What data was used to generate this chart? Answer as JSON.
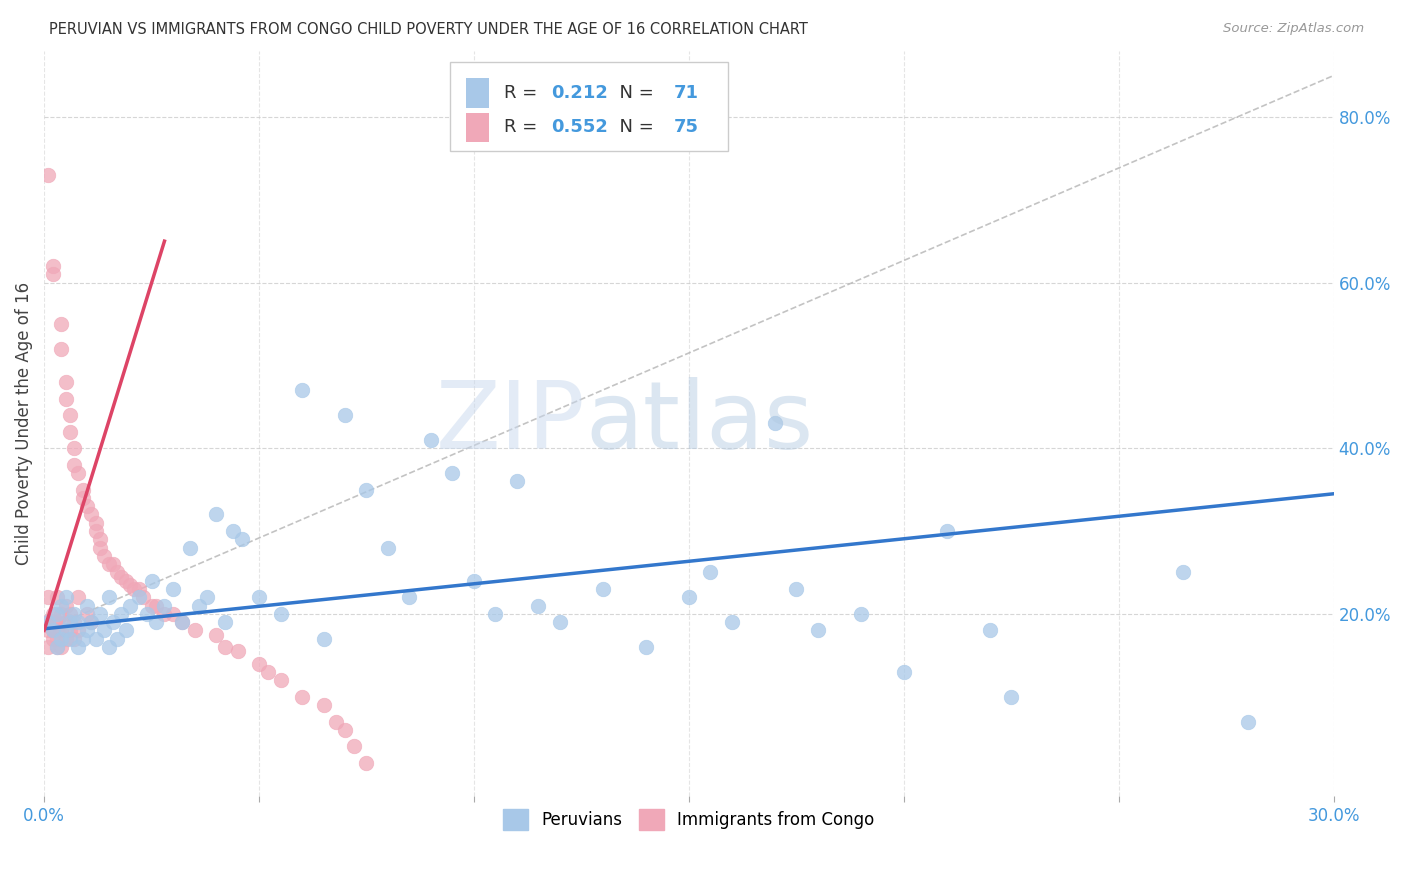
{
  "title": "PERUVIAN VS IMMIGRANTS FROM CONGO CHILD POVERTY UNDER THE AGE OF 16 CORRELATION CHART",
  "source": "Source: ZipAtlas.com",
  "ylabel": "Child Poverty Under the Age of 16",
  "xlim": [
    0.0,
    0.3
  ],
  "ylim": [
    -0.02,
    0.88
  ],
  "xtick_vals": [
    0.0,
    0.05,
    0.1,
    0.15,
    0.2,
    0.25,
    0.3
  ],
  "xticklabels": [
    "0.0%",
    "",
    "",
    "",
    "",
    "",
    "30.0%"
  ],
  "yticks_right": [
    0.2,
    0.4,
    0.6,
    0.8
  ],
  "ytick_right_labels": [
    "20.0%",
    "40.0%",
    "60.0%",
    "80.0%"
  ],
  "legend_r_peru": "0.212",
  "legend_n_peru": "71",
  "legend_r_congo": "0.552",
  "legend_n_congo": "75",
  "blue_scatter_color": "#A8C8E8",
  "pink_scatter_color": "#F0A8B8",
  "blue_line_color": "#3377CC",
  "pink_line_color": "#DD4466",
  "blue_text_color": "#4499DD",
  "watermark_zip": "ZIP",
  "watermark_atlas": "atlas",
  "background_color": "#ffffff",
  "grid_color": "#cccccc",
  "peru_scatter_x": [
    0.001,
    0.002,
    0.003,
    0.003,
    0.004,
    0.004,
    0.005,
    0.005,
    0.006,
    0.006,
    0.007,
    0.008,
    0.008,
    0.009,
    0.01,
    0.01,
    0.011,
    0.012,
    0.013,
    0.014,
    0.015,
    0.015,
    0.016,
    0.017,
    0.018,
    0.019,
    0.02,
    0.022,
    0.024,
    0.025,
    0.026,
    0.028,
    0.03,
    0.032,
    0.034,
    0.036,
    0.038,
    0.04,
    0.042,
    0.044,
    0.046,
    0.05,
    0.055,
    0.06,
    0.065,
    0.07,
    0.075,
    0.08,
    0.085,
    0.09,
    0.095,
    0.1,
    0.105,
    0.11,
    0.115,
    0.12,
    0.13,
    0.14,
    0.15,
    0.155,
    0.16,
    0.17,
    0.175,
    0.18,
    0.19,
    0.2,
    0.21,
    0.22,
    0.225,
    0.265,
    0.28
  ],
  "peru_scatter_y": [
    0.19,
    0.18,
    0.16,
    0.2,
    0.17,
    0.21,
    0.18,
    0.22,
    0.19,
    0.17,
    0.2,
    0.16,
    0.19,
    0.17,
    0.18,
    0.21,
    0.19,
    0.17,
    0.2,
    0.18,
    0.16,
    0.22,
    0.19,
    0.17,
    0.2,
    0.18,
    0.21,
    0.22,
    0.2,
    0.24,
    0.19,
    0.21,
    0.23,
    0.19,
    0.28,
    0.21,
    0.22,
    0.32,
    0.19,
    0.3,
    0.29,
    0.22,
    0.2,
    0.47,
    0.17,
    0.44,
    0.35,
    0.28,
    0.22,
    0.41,
    0.37,
    0.24,
    0.2,
    0.36,
    0.21,
    0.19,
    0.23,
    0.16,
    0.22,
    0.25,
    0.19,
    0.43,
    0.23,
    0.18,
    0.2,
    0.13,
    0.3,
    0.18,
    0.1,
    0.25,
    0.07
  ],
  "congo_scatter_x": [
    0.0005,
    0.001,
    0.001,
    0.001,
    0.001,
    0.002,
    0.002,
    0.002,
    0.002,
    0.002,
    0.002,
    0.003,
    0.003,
    0.003,
    0.003,
    0.003,
    0.004,
    0.004,
    0.004,
    0.004,
    0.004,
    0.005,
    0.005,
    0.005,
    0.005,
    0.005,
    0.006,
    0.006,
    0.006,
    0.006,
    0.007,
    0.007,
    0.007,
    0.007,
    0.008,
    0.008,
    0.008,
    0.009,
    0.009,
    0.01,
    0.01,
    0.011,
    0.011,
    0.012,
    0.012,
    0.013,
    0.013,
    0.014,
    0.015,
    0.016,
    0.017,
    0.018,
    0.019,
    0.02,
    0.021,
    0.022,
    0.023,
    0.025,
    0.026,
    0.028,
    0.03,
    0.032,
    0.035,
    0.04,
    0.042,
    0.045,
    0.05,
    0.052,
    0.055,
    0.06,
    0.065,
    0.068,
    0.07,
    0.072,
    0.075
  ],
  "congo_scatter_y": [
    0.19,
    0.18,
    0.22,
    0.16,
    0.73,
    0.19,
    0.18,
    0.2,
    0.17,
    0.62,
    0.61,
    0.19,
    0.17,
    0.22,
    0.16,
    0.18,
    0.2,
    0.55,
    0.18,
    0.16,
    0.52,
    0.21,
    0.19,
    0.48,
    0.17,
    0.46,
    0.2,
    0.44,
    0.18,
    0.42,
    0.19,
    0.4,
    0.17,
    0.38,
    0.22,
    0.37,
    0.18,
    0.35,
    0.34,
    0.33,
    0.2,
    0.32,
    0.19,
    0.31,
    0.3,
    0.29,
    0.28,
    0.27,
    0.26,
    0.26,
    0.25,
    0.245,
    0.24,
    0.235,
    0.23,
    0.23,
    0.22,
    0.21,
    0.21,
    0.2,
    0.2,
    0.19,
    0.18,
    0.175,
    0.16,
    0.155,
    0.14,
    0.13,
    0.12,
    0.1,
    0.09,
    0.07,
    0.06,
    0.04,
    0.02
  ],
  "blue_trendline_x": [
    0.0,
    0.3
  ],
  "blue_trendline_y": [
    0.182,
    0.345
  ],
  "pink_trendline_x": [
    0.0,
    0.028
  ],
  "pink_trendline_y": [
    0.18,
    0.65
  ],
  "diag_line_x": [
    0.0,
    0.3
  ],
  "diag_line_y": [
    0.18,
    0.85
  ]
}
